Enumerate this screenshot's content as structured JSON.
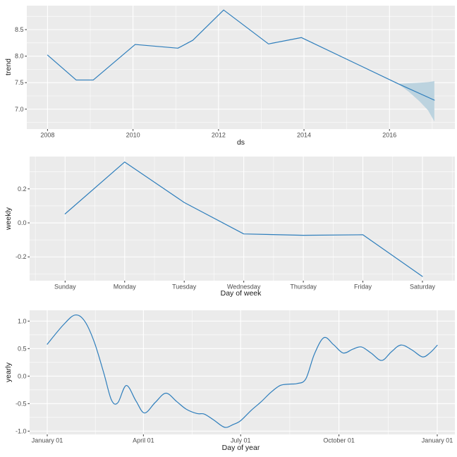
{
  "style": {
    "background": "#FFFFFF",
    "panel_bg": "#EBEBEB",
    "grid_color": "#FFFFFF",
    "line_color": "#2E7EBC",
    "band_color": "#BCD3DF",
    "tick_mark_color": "#333333",
    "tick_label_color": "#4D4D4D",
    "axis_title_color": "#1A1A1A"
  },
  "chart_data": [
    {
      "type": "line",
      "name": "trend",
      "xlabel": "ds",
      "ylabel": "trend",
      "smooth": false,
      "grid": true,
      "xlim": [
        2007.515,
        2017.53
      ],
      "ylim": [
        6.625,
        8.952
      ],
      "x_ticks": [
        {
          "v": 2008,
          "label": "2008"
        },
        {
          "v": 2010,
          "label": "2010"
        },
        {
          "v": 2012,
          "label": "2012"
        },
        {
          "v": 2014,
          "label": "2014"
        },
        {
          "v": 2016,
          "label": "2016"
        }
      ],
      "y_ticks": [
        {
          "v": 7.0,
          "label": "7.0"
        },
        {
          "v": 7.5,
          "label": "7.5"
        },
        {
          "v": 8.0,
          "label": "8.0"
        },
        {
          "v": 8.5,
          "label": "8.5"
        }
      ],
      "x_minor": [
        2009,
        2011,
        2013,
        2015,
        2017
      ],
      "y_minor": [
        6.75,
        7.25,
        7.75,
        8.25,
        8.75
      ],
      "series": [
        {
          "name": "trend",
          "x": [
            2008.0,
            2008.67,
            2009.07,
            2010.05,
            2011.05,
            2011.4,
            2012.12,
            2013.17,
            2013.94,
            2016.2,
            2017.05
          ],
          "y": [
            8.02,
            7.55,
            7.55,
            8.22,
            8.15,
            8.3,
            8.87,
            8.23,
            8.35,
            7.48,
            7.17
          ]
        }
      ],
      "band": {
        "name": "uncertainty-interval",
        "x": [
          2016.2,
          2016.45,
          2016.7,
          2016.9,
          2017.05
        ],
        "upper": [
          7.48,
          7.49,
          7.5,
          7.51,
          7.53
        ],
        "lower": [
          7.48,
          7.33,
          7.15,
          6.98,
          6.77
        ]
      }
    },
    {
      "type": "line",
      "name": "weekly",
      "xlabel": "Day of week",
      "ylabel": "weekly",
      "smooth": false,
      "grid": true,
      "categories": [
        "Sunday",
        "Monday",
        "Tuesday",
        "Wednesday",
        "Thursday",
        "Friday",
        "Saturday"
      ],
      "xlim": [
        -0.596,
        6.545
      ],
      "ylim": [
        -0.34,
        0.39
      ],
      "x_ticks": [
        {
          "v": 0,
          "label": "Sunday"
        },
        {
          "v": 1,
          "label": "Monday"
        },
        {
          "v": 2,
          "label": "Tuesday"
        },
        {
          "v": 3,
          "label": "Wednesday"
        },
        {
          "v": 4,
          "label": "Thursday"
        },
        {
          "v": 5,
          "label": "Friday"
        },
        {
          "v": 6,
          "label": "Saturday"
        }
      ],
      "y_ticks": [
        {
          "v": -0.2,
          "label": "-0.2"
        },
        {
          "v": 0.0,
          "label": "0.0"
        },
        {
          "v": 0.2,
          "label": "0.2"
        }
      ],
      "x_minor": [
        -0.5,
        0.5,
        1.5,
        2.5,
        3.5,
        4.5,
        5.5,
        6.5
      ],
      "y_minor": [
        -0.3,
        -0.1,
        0.1,
        0.3
      ],
      "series": [
        {
          "name": "weekly",
          "x": [
            0,
            1,
            2,
            3,
            4,
            5,
            6
          ],
          "y": [
            0.053,
            0.358,
            0.12,
            -0.065,
            -0.073,
            -0.07,
            -0.315
          ]
        }
      ]
    },
    {
      "type": "line",
      "name": "yearly",
      "xlabel": "Day of year",
      "ylabel": "yearly",
      "smooth": true,
      "grid": true,
      "xlim": [
        -16.5,
        381.5
      ],
      "ylim": [
        -1.06,
        1.196
      ],
      "x_ticks": [
        {
          "v": 0,
          "label": "January 01"
        },
        {
          "v": 90,
          "label": "April 01"
        },
        {
          "v": 181,
          "label": "July 01"
        },
        {
          "v": 273,
          "label": "October 01"
        },
        {
          "v": 365,
          "label": "January 01"
        }
      ],
      "y_ticks": [
        {
          "v": -1.0,
          "label": "-1.0"
        },
        {
          "v": -0.5,
          "label": "-0.5"
        },
        {
          "v": 0.0,
          "label": "0.0"
        },
        {
          "v": 0.5,
          "label": "0.5"
        },
        {
          "v": 1.0,
          "label": "1.0"
        }
      ],
      "x_minor": [
        45,
        135.5,
        227,
        319
      ],
      "y_minor": [
        -0.75,
        -0.25,
        0.25,
        0.75
      ],
      "series": [
        {
          "name": "yearly",
          "x": [
            0,
            15,
            26,
            35,
            44,
            53,
            60,
            66,
            74,
            83,
            91,
            101,
            111,
            121,
            130,
            140,
            147,
            156,
            166,
            174,
            181,
            191,
            200,
            209,
            218,
            227,
            234,
            242,
            250,
            259,
            268,
            277,
            286,
            294,
            303,
            313,
            322,
            331,
            341,
            351,
            358,
            365
          ],
          "y": [
            0.58,
            0.93,
            1.11,
            1.0,
            0.62,
            0.05,
            -0.43,
            -0.485,
            -0.17,
            -0.45,
            -0.67,
            -0.48,
            -0.31,
            -0.46,
            -0.6,
            -0.68,
            -0.69,
            -0.8,
            -0.93,
            -0.88,
            -0.81,
            -0.62,
            -0.47,
            -0.3,
            -0.17,
            -0.145,
            -0.135,
            -0.05,
            0.4,
            0.7,
            0.57,
            0.42,
            0.49,
            0.53,
            0.42,
            0.285,
            0.44,
            0.565,
            0.48,
            0.35,
            0.42,
            0.56
          ]
        }
      ]
    }
  ]
}
